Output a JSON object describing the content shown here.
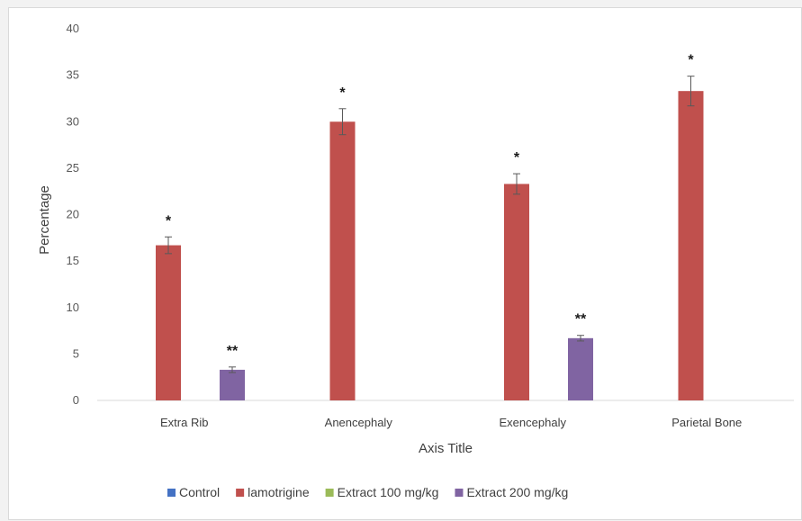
{
  "chart_data": {
    "type": "bar",
    "title": "",
    "xlabel": "Axis Title",
    "ylabel": "Percentage",
    "ylim": [
      0,
      40
    ],
    "yticks": [
      "0",
      "5",
      "10",
      "15",
      "20",
      "25",
      "30",
      "35",
      "40"
    ],
    "categories": [
      "Extra Rib",
      "Anencephaly",
      "Exencephaly",
      "Parietal Bone"
    ],
    "series": [
      {
        "name": "Control",
        "color": "#4472c4",
        "values": [
          0,
          0,
          0,
          0
        ],
        "errors": [
          0,
          0,
          0,
          0
        ],
        "markers": [
          "",
          "",
          "",
          ""
        ]
      },
      {
        "name": "lamotrigine",
        "color": "#c0504d",
        "values": [
          16.7,
          30.0,
          23.3,
          33.3
        ],
        "errors": [
          0.9,
          1.4,
          1.1,
          1.6
        ],
        "markers": [
          "*",
          "*",
          "*",
          "*"
        ]
      },
      {
        "name": "Extract 100 mg/kg",
        "color": "#9bbb59",
        "values": [
          0,
          0,
          0,
          0
        ],
        "errors": [
          0,
          0,
          0,
          0
        ],
        "markers": [
          "",
          "",
          "",
          ""
        ]
      },
      {
        "name": "Extract 200 mg/kg",
        "color": "#8064a2",
        "values": [
          3.3,
          0,
          6.7,
          0
        ],
        "errors": [
          0.3,
          0,
          0.3,
          0
        ],
        "markers": [
          "**",
          "",
          "**",
          ""
        ]
      }
    ],
    "grid": false,
    "legend": "bottom"
  }
}
